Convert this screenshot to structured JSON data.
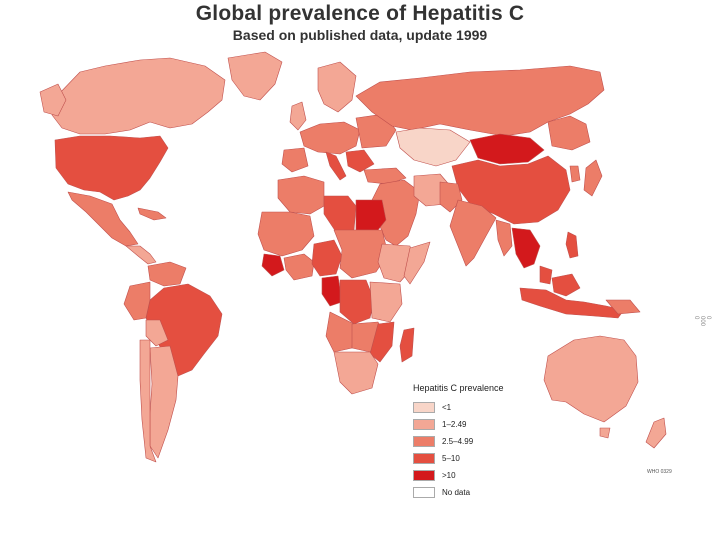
{
  "title": "Global prevalence of Hepatitis C",
  "subtitle": "Based on published data, update 1999",
  "legend": {
    "title": "Hepatitis C prevalence",
    "items": [
      {
        "label": "<1",
        "color": "#f8d5c8"
      },
      {
        "label": "1–2.49",
        "color": "#f3a795"
      },
      {
        "label": "2.5–4.99",
        "color": "#ec7d68"
      },
      {
        "label": "5–10",
        "color": "#e44f40"
      },
      {
        "label": ">10",
        "color": "#d3191c"
      },
      {
        "label": "No data",
        "color": "#ffffff"
      }
    ]
  },
  "code": "WHO 0329",
  "side_left": "8888",
  "side_right": "0 000 0",
  "map_colors": {
    "border": "#c0504d",
    "ocean": "#ffffff"
  }
}
